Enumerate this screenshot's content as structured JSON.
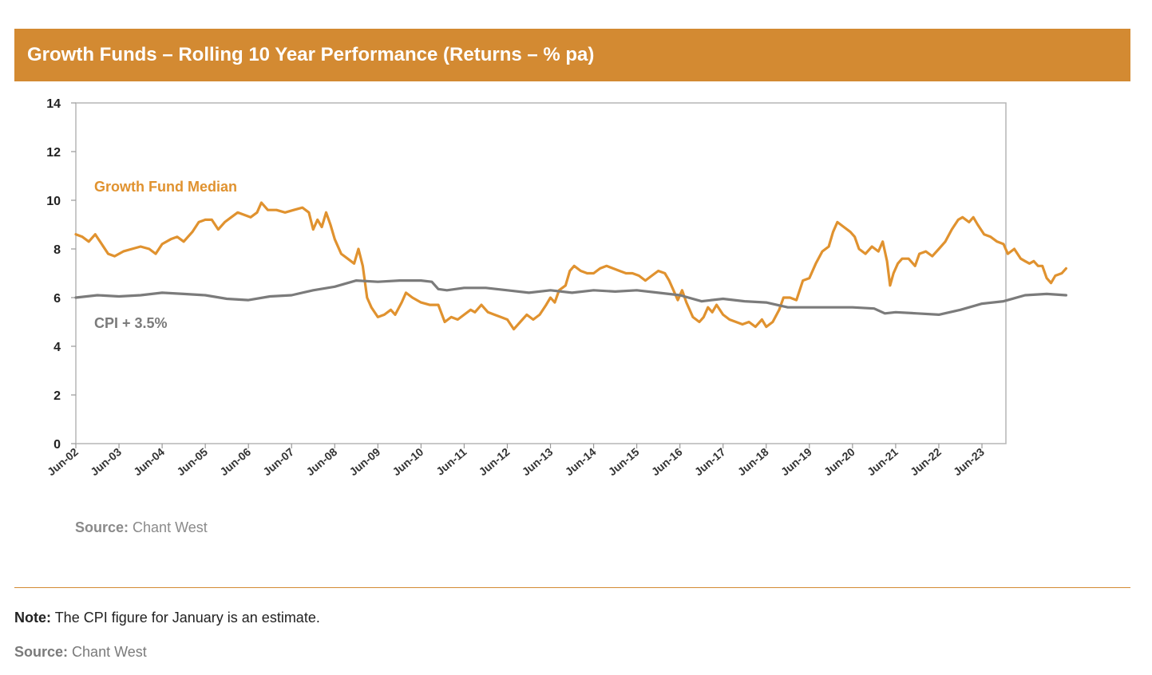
{
  "header": {
    "title": "Growth Funds – Rolling 10 Year Performance (Returns – % pa)"
  },
  "chart_data": {
    "type": "line",
    "ylim": [
      0,
      14
    ],
    "yticks": [
      0,
      2,
      4,
      6,
      8,
      10,
      12,
      14
    ],
    "x_range": [
      2002.0,
      2024.1
    ],
    "xtick_labels": [
      "Jun-02",
      "Jun-03",
      "Jun-04",
      "Jun-05",
      "Jun-06",
      "Jun-07",
      "Jun-08",
      "Jun-09",
      "Jun-10",
      "Jun-11",
      "Jun-12",
      "Jun-13",
      "Jun-14",
      "Jun-15",
      "Jun-16",
      "Jun-17",
      "Jun-18",
      "Jun-19",
      "Jun-20",
      "Jun-21",
      "Jun-22",
      "Jun-23"
    ],
    "grid": false,
    "series": [
      {
        "name": "Growth Fund Median",
        "color": "#E0922F",
        "points": [
          [
            2002.0,
            8.6
          ],
          [
            2002.15,
            8.5
          ],
          [
            2002.3,
            8.3
          ],
          [
            2002.45,
            8.6
          ],
          [
            2002.6,
            8.2
          ],
          [
            2002.75,
            7.8
          ],
          [
            2002.9,
            7.7
          ],
          [
            2003.1,
            7.9
          ],
          [
            2003.3,
            8.0
          ],
          [
            2003.5,
            8.1
          ],
          [
            2003.7,
            8.0
          ],
          [
            2003.85,
            7.8
          ],
          [
            2004.0,
            8.2
          ],
          [
            2004.2,
            8.4
          ],
          [
            2004.35,
            8.5
          ],
          [
            2004.5,
            8.3
          ],
          [
            2004.7,
            8.7
          ],
          [
            2004.85,
            9.1
          ],
          [
            2005.0,
            9.2
          ],
          [
            2005.15,
            9.2
          ],
          [
            2005.3,
            8.8
          ],
          [
            2005.45,
            9.1
          ],
          [
            2005.6,
            9.3
          ],
          [
            2005.75,
            9.5
          ],
          [
            2005.9,
            9.4
          ],
          [
            2006.05,
            9.3
          ],
          [
            2006.2,
            9.5
          ],
          [
            2006.3,
            9.9
          ],
          [
            2006.45,
            9.6
          ],
          [
            2006.65,
            9.6
          ],
          [
            2006.85,
            9.5
          ],
          [
            2007.05,
            9.6
          ],
          [
            2007.25,
            9.7
          ],
          [
            2007.4,
            9.5
          ],
          [
            2007.5,
            8.8
          ],
          [
            2007.6,
            9.2
          ],
          [
            2007.7,
            8.9
          ],
          [
            2007.8,
            9.5
          ],
          [
            2007.9,
            9.0
          ],
          [
            2008.0,
            8.4
          ],
          [
            2008.15,
            7.8
          ],
          [
            2008.3,
            7.6
          ],
          [
            2008.45,
            7.4
          ],
          [
            2008.55,
            8.0
          ],
          [
            2008.65,
            7.3
          ],
          [
            2008.75,
            6.0
          ],
          [
            2008.85,
            5.6
          ],
          [
            2009.0,
            5.2
          ],
          [
            2009.15,
            5.3
          ],
          [
            2009.3,
            5.5
          ],
          [
            2009.4,
            5.3
          ],
          [
            2009.55,
            5.8
          ],
          [
            2009.65,
            6.2
          ],
          [
            2009.8,
            6.0
          ],
          [
            2010.0,
            5.8
          ],
          [
            2010.2,
            5.7
          ],
          [
            2010.4,
            5.7
          ],
          [
            2010.55,
            5.0
          ],
          [
            2010.7,
            5.2
          ],
          [
            2010.85,
            5.1
          ],
          [
            2011.0,
            5.3
          ],
          [
            2011.15,
            5.5
          ],
          [
            2011.25,
            5.4
          ],
          [
            2011.4,
            5.7
          ],
          [
            2011.55,
            5.4
          ],
          [
            2011.7,
            5.3
          ],
          [
            2011.85,
            5.2
          ],
          [
            2012.0,
            5.1
          ],
          [
            2012.15,
            4.7
          ],
          [
            2012.3,
            5.0
          ],
          [
            2012.45,
            5.3
          ],
          [
            2012.6,
            5.1
          ],
          [
            2012.75,
            5.3
          ],
          [
            2012.9,
            5.7
          ],
          [
            2013.0,
            6.0
          ],
          [
            2013.1,
            5.8
          ],
          [
            2013.2,
            6.3
          ],
          [
            2013.35,
            6.5
          ],
          [
            2013.45,
            7.1
          ],
          [
            2013.55,
            7.3
          ],
          [
            2013.7,
            7.1
          ],
          [
            2013.85,
            7.0
          ],
          [
            2014.0,
            7.0
          ],
          [
            2014.15,
            7.2
          ],
          [
            2014.3,
            7.3
          ],
          [
            2014.45,
            7.2
          ],
          [
            2014.6,
            7.1
          ],
          [
            2014.75,
            7.0
          ],
          [
            2014.9,
            7.0
          ],
          [
            2015.05,
            6.9
          ],
          [
            2015.2,
            6.7
          ],
          [
            2015.35,
            6.9
          ],
          [
            2015.5,
            7.1
          ],
          [
            2015.65,
            7.0
          ],
          [
            2015.75,
            6.7
          ],
          [
            2015.85,
            6.3
          ],
          [
            2015.95,
            5.9
          ],
          [
            2016.05,
            6.3
          ],
          [
            2016.15,
            5.8
          ],
          [
            2016.3,
            5.2
          ],
          [
            2016.45,
            5.0
          ],
          [
            2016.55,
            5.2
          ],
          [
            2016.65,
            5.6
          ],
          [
            2016.75,
            5.4
          ],
          [
            2016.85,
            5.7
          ],
          [
            2017.0,
            5.3
          ],
          [
            2017.15,
            5.1
          ],
          [
            2017.3,
            5.0
          ],
          [
            2017.45,
            4.9
          ],
          [
            2017.6,
            5.0
          ],
          [
            2017.75,
            4.8
          ],
          [
            2017.9,
            5.1
          ],
          [
            2018.0,
            4.8
          ],
          [
            2018.15,
            5.0
          ],
          [
            2018.3,
            5.5
          ],
          [
            2018.4,
            6.0
          ],
          [
            2018.55,
            6.0
          ],
          [
            2018.7,
            5.9
          ],
          [
            2018.85,
            6.7
          ],
          [
            2019.0,
            6.8
          ],
          [
            2019.15,
            7.4
          ],
          [
            2019.3,
            7.9
          ],
          [
            2019.45,
            8.1
          ],
          [
            2019.55,
            8.7
          ],
          [
            2019.65,
            9.1
          ],
          [
            2019.8,
            8.9
          ],
          [
            2019.95,
            8.7
          ],
          [
            2020.05,
            8.5
          ],
          [
            2020.15,
            8.0
          ],
          [
            2020.3,
            7.8
          ],
          [
            2020.45,
            8.1
          ],
          [
            2020.6,
            7.9
          ],
          [
            2020.7,
            8.3
          ],
          [
            2020.8,
            7.5
          ],
          [
            2020.87,
            6.5
          ],
          [
            2020.95,
            7.0
          ],
          [
            2021.05,
            7.4
          ],
          [
            2021.15,
            7.6
          ],
          [
            2021.3,
            7.6
          ],
          [
            2021.45,
            7.3
          ],
          [
            2021.55,
            7.8
          ],
          [
            2021.7,
            7.9
          ],
          [
            2021.85,
            7.7
          ],
          [
            2022.0,
            8.0
          ],
          [
            2022.15,
            8.3
          ],
          [
            2022.3,
            8.8
          ],
          [
            2022.45,
            9.2
          ],
          [
            2022.55,
            9.3
          ],
          [
            2022.7,
            9.1
          ],
          [
            2022.8,
            9.3
          ],
          [
            2022.9,
            9.0
          ],
          [
            2023.05,
            8.6
          ],
          [
            2023.2,
            8.5
          ],
          [
            2023.35,
            8.3
          ],
          [
            2023.5,
            8.2
          ],
          [
            2023.6,
            7.8
          ],
          [
            2023.75,
            8.0
          ],
          [
            2023.9,
            7.6
          ],
          [
            2024.0,
            7.5
          ],
          [
            2024.1,
            7.4
          ],
          [
            2024.2,
            7.5
          ],
          [
            2024.3,
            7.3
          ],
          [
            2024.4,
            7.3
          ],
          [
            2024.5,
            6.8
          ],
          [
            2024.6,
            6.6
          ],
          [
            2024.7,
            6.9
          ],
          [
            2024.85,
            7.0
          ],
          [
            2024.95,
            7.2
          ]
        ]
      },
      {
        "name": "CPI + 3.5%",
        "color": "#7B7B7B",
        "points": [
          [
            2002.0,
            6.0
          ],
          [
            2002.5,
            6.1
          ],
          [
            2003.0,
            6.05
          ],
          [
            2003.5,
            6.1
          ],
          [
            2004.0,
            6.2
          ],
          [
            2004.5,
            6.15
          ],
          [
            2005.0,
            6.1
          ],
          [
            2005.5,
            5.95
          ],
          [
            2006.0,
            5.9
          ],
          [
            2006.5,
            6.05
          ],
          [
            2007.0,
            6.1
          ],
          [
            2007.5,
            6.3
          ],
          [
            2008.0,
            6.45
          ],
          [
            2008.5,
            6.7
          ],
          [
            2009.0,
            6.65
          ],
          [
            2009.5,
            6.7
          ],
          [
            2010.0,
            6.7
          ],
          [
            2010.25,
            6.65
          ],
          [
            2010.4,
            6.35
          ],
          [
            2010.6,
            6.3
          ],
          [
            2011.0,
            6.4
          ],
          [
            2011.5,
            6.4
          ],
          [
            2012.0,
            6.3
          ],
          [
            2012.5,
            6.2
          ],
          [
            2013.0,
            6.3
          ],
          [
            2013.5,
            6.2
          ],
          [
            2014.0,
            6.3
          ],
          [
            2014.5,
            6.25
          ],
          [
            2015.0,
            6.3
          ],
          [
            2015.5,
            6.2
          ],
          [
            2016.0,
            6.1
          ],
          [
            2016.5,
            5.85
          ],
          [
            2017.0,
            5.95
          ],
          [
            2017.5,
            5.85
          ],
          [
            2018.0,
            5.8
          ],
          [
            2018.5,
            5.6
          ],
          [
            2019.0,
            5.6
          ],
          [
            2019.5,
            5.6
          ],
          [
            2020.0,
            5.6
          ],
          [
            2020.5,
            5.55
          ],
          [
            2020.75,
            5.35
          ],
          [
            2021.0,
            5.4
          ],
          [
            2021.5,
            5.35
          ],
          [
            2022.0,
            5.3
          ],
          [
            2022.5,
            5.5
          ],
          [
            2023.0,
            5.75
          ],
          [
            2023.5,
            5.85
          ],
          [
            2024.0,
            6.1
          ],
          [
            2024.5,
            6.15
          ],
          [
            2024.95,
            6.1
          ]
        ]
      }
    ],
    "annotations": [
      {
        "text": "Growth Fund Median",
        "color": "#E0922F"
      },
      {
        "text": "CPI + 3.5%",
        "color": "#7B7B7B"
      }
    ],
    "source": {
      "label": "Source:",
      "text": "Chant West"
    }
  },
  "footer": {
    "note_label": "Note:",
    "note_text": "The CPI figure for January is an estimate.",
    "source_label": "Source:",
    "source_text": "Chant West"
  },
  "colors": {
    "banner": "#D38A32",
    "growth_line": "#E0922F",
    "cpi_line": "#7B7B7B",
    "axis": "#9a9a9a"
  }
}
